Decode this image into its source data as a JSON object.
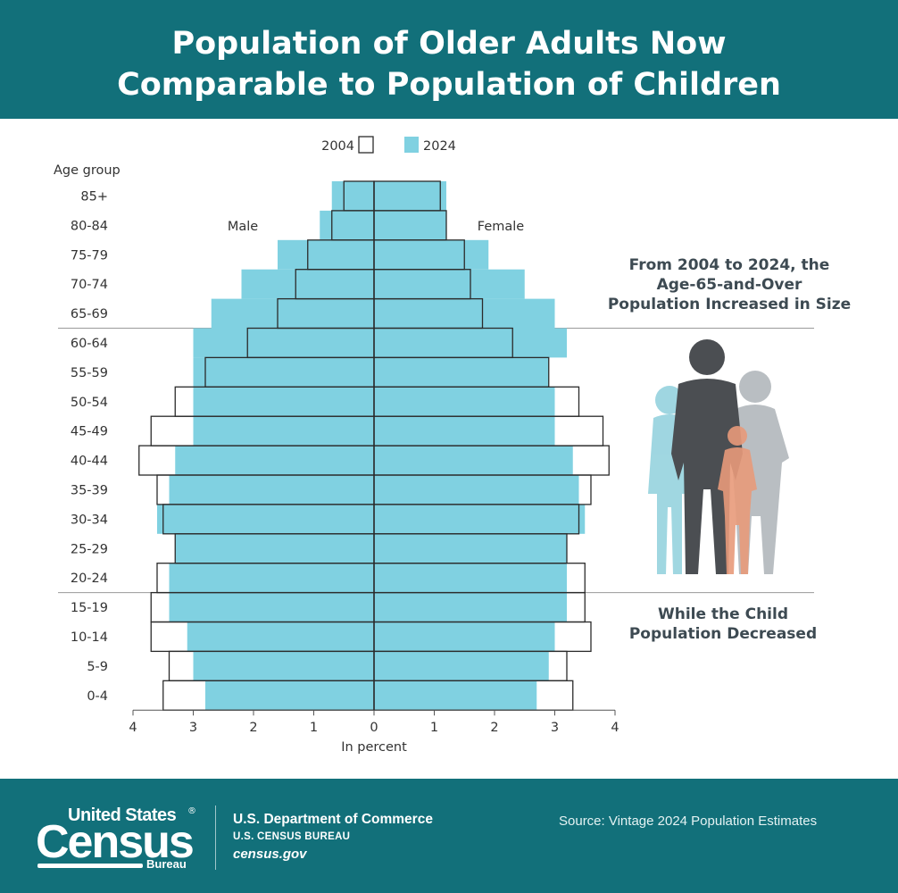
{
  "title_line1": "Population of Older Adults Now",
  "title_line2": "Comparable to Population of Children",
  "caption_top": [
    "From 2004 to 2024, the",
    "Age-65-and-Over",
    "Population Increased in Size"
  ],
  "caption_bottom": [
    "While the Child",
    "Population Decreased"
  ],
  "colors": {
    "header": "#12707a",
    "bar_2024": "#80d1e1",
    "outline_2004": "#2b2b2b",
    "caption": "#3d4a52"
  },
  "footer": {
    "logo_line1": "United States",
    "logo_line2": "Census",
    "logo_line3": "Bureau",
    "dept": "U.S. Department of Commerce",
    "bureau": "U.S. CENSUS BUREAU",
    "site": "census.gov",
    "source": "Source: Vintage 2024 Population Estimates"
  },
  "illustration": {
    "icon": "family-silhouette-icon"
  },
  "chart_data": {
    "type": "bar",
    "orientation": "horizontal-pyramid",
    "age_group_label": "Age group",
    "side_labels": {
      "left": "Male",
      "right": "Female"
    },
    "xlabel": "In percent",
    "xlim": [
      -4,
      4
    ],
    "xticks": [
      4,
      3,
      2,
      1,
      0,
      1,
      2,
      3,
      4
    ],
    "legend": {
      "position": "top-center"
    },
    "categories": [
      "85+",
      "80-84",
      "75-79",
      "70-74",
      "65-69",
      "60-64",
      "55-59",
      "50-54",
      "45-49",
      "40-44",
      "35-39",
      "30-34",
      "25-29",
      "20-24",
      "15-19",
      "10-14",
      "5-9",
      "0-4"
    ],
    "series": [
      {
        "name": "2004",
        "style": "outline",
        "male": [
          0.5,
          0.7,
          1.1,
          1.3,
          1.6,
          2.1,
          2.8,
          3.3,
          3.7,
          3.9,
          3.6,
          3.5,
          3.3,
          3.6,
          3.7,
          3.7,
          3.4,
          3.5
        ],
        "female": [
          1.1,
          1.2,
          1.5,
          1.6,
          1.8,
          2.3,
          2.9,
          3.4,
          3.8,
          3.9,
          3.6,
          3.4,
          3.2,
          3.5,
          3.5,
          3.6,
          3.2,
          3.3
        ]
      },
      {
        "name": "2024",
        "style": "filled",
        "male": [
          0.7,
          0.9,
          1.6,
          2.2,
          2.7,
          3.0,
          3.0,
          3.0,
          3.0,
          3.3,
          3.4,
          3.6,
          3.3,
          3.4,
          3.4,
          3.1,
          3.0,
          2.8
        ],
        "female": [
          1.2,
          1.2,
          1.9,
          2.5,
          3.0,
          3.2,
          2.9,
          3.0,
          3.0,
          3.3,
          3.4,
          3.5,
          3.2,
          3.2,
          3.2,
          3.0,
          2.9,
          2.7
        ]
      }
    ]
  }
}
